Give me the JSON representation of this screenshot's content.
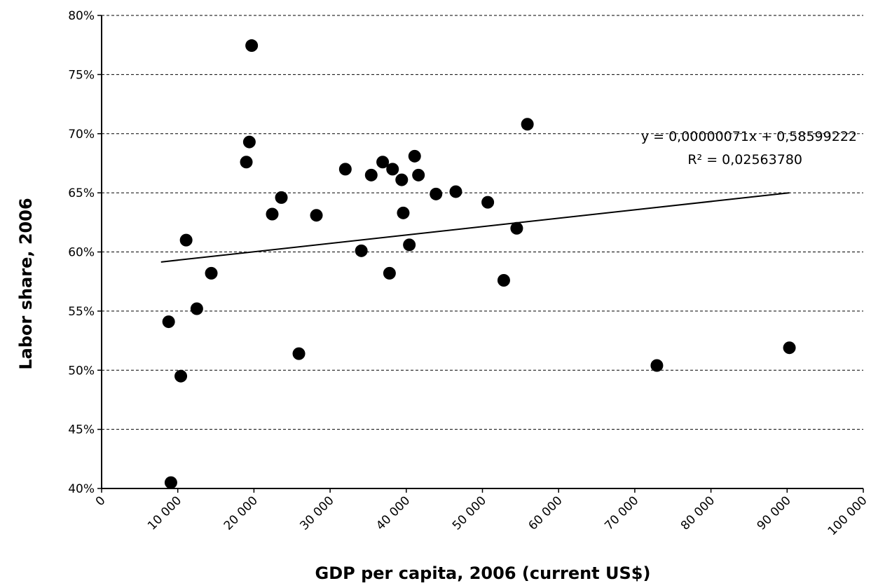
{
  "chart_data": {
    "type": "scatter",
    "x_label": "GDP per capita, 2006 (current US$)",
    "y_label": "Labor share, 2006",
    "xlim": [
      0,
      100000
    ],
    "ylim": [
      40,
      80
    ],
    "xticks": [
      0,
      {
        "value": 10000,
        "label": "10 000"
      },
      {
        "value": 20000,
        "label": "20 000"
      },
      {
        "value": 30000,
        "label": "30 000"
      },
      {
        "value": 40000,
        "label": "40 000"
      },
      {
        "value": 50000,
        "label": "50 000"
      },
      {
        "value": 60000,
        "label": "60 000"
      },
      {
        "value": 70000,
        "label": "70 000"
      },
      {
        "value": 80000,
        "label": "80 000"
      },
      {
        "value": 90000,
        "label": "90 000"
      },
      {
        "value": 100000,
        "label": "100 000"
      }
    ],
    "yticks": [
      {
        "value": 40,
        "label": "40%"
      },
      {
        "value": 45,
        "label": "45%"
      },
      {
        "value": 50,
        "label": "50%"
      },
      {
        "value": 55,
        "label": "55%"
      },
      {
        "value": 60,
        "label": "60%"
      },
      {
        "value": 65,
        "label": "65%"
      },
      {
        "value": 70,
        "label": "70%"
      },
      {
        "value": 75,
        "label": "75%"
      },
      {
        "value": 80,
        "label": "80%"
      }
    ],
    "grid": true,
    "color": "#000000",
    "x": [
      19700,
      19400,
      19000,
      22400,
      23600,
      11100,
      14400,
      12500,
      8800,
      10400,
      9100,
      25900,
      28200,
      32000,
      34100,
      35400,
      36900,
      38200,
      37800,
      39400,
      39600,
      41100,
      41600,
      40400,
      43900,
      46500,
      50700,
      52800,
      54500,
      55900,
      72900,
      90300
    ],
    "values": [
      77.45,
      69.3,
      67.6,
      63.2,
      64.6,
      61.0,
      58.2,
      55.2,
      54.1,
      49.5,
      40.5,
      51.4,
      63.1,
      67.0,
      60.1,
      66.5,
      67.6,
      67.0,
      58.2,
      66.1,
      63.3,
      68.1,
      66.5,
      60.6,
      64.9,
      65.1,
      64.2,
      57.6,
      62.0,
      70.8,
      50.4,
      51.9
    ],
    "trendline": {
      "x": [
        7800,
        90300
      ],
      "values": [
        59.15,
        65.0
      ]
    },
    "annotations": [
      "y = 0,00000071x + 0,58599222",
      "R² = 0,02563780"
    ]
  }
}
